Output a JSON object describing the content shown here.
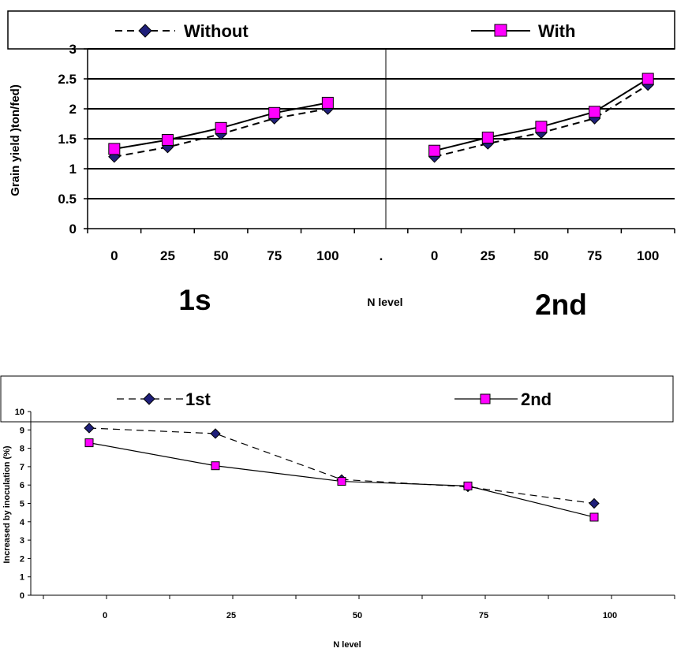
{
  "chart_data": [
    {
      "type": "line",
      "ylabel": "Grain yield )ton/fed)",
      "xlabel": "N level",
      "ylim": [
        0,
        3
      ],
      "yticks": [
        "0",
        "0.5",
        "1",
        "1.5",
        "2",
        "2.5",
        "3"
      ],
      "categories": [
        "0",
        "25",
        "50",
        "75",
        "100",
        ".",
        "0",
        "25",
        "50",
        "75",
        "100"
      ],
      "group_labels": [
        "1s",
        "2nd"
      ],
      "legend": {
        "position": "top"
      },
      "grid": true,
      "series": [
        {
          "name": "Without",
          "color": "#1f1f7a",
          "marker": "diamond",
          "dash": true,
          "values": [
            1.2,
            1.36,
            1.58,
            1.84,
            2.0,
            null,
            1.2,
            1.42,
            1.6,
            1.84,
            2.4
          ]
        },
        {
          "name": "With",
          "color": "#ff00ff",
          "marker": "square",
          "dash": false,
          "values": [
            1.33,
            1.48,
            1.68,
            1.93,
            2.1,
            null,
            1.3,
            1.52,
            1.7,
            1.95,
            2.5
          ]
        }
      ]
    },
    {
      "type": "line",
      "ylabel": "Increased by inoculation (%)",
      "xlabel": "N level",
      "ylim": [
        0,
        10
      ],
      "yticks": [
        "0",
        "1",
        "2",
        "3",
        "4",
        "5",
        "6",
        "7",
        "8",
        "9",
        "10"
      ],
      "categories": [
        "0",
        "25",
        "50",
        "75",
        "100"
      ],
      "legend": {
        "position": "top"
      },
      "grid": false,
      "series": [
        {
          "name": "1st",
          "color": "#1f1f7a",
          "marker": "diamond",
          "dash": true,
          "values": [
            9.1,
            8.8,
            6.3,
            5.9,
            5.0
          ]
        },
        {
          "name": "2nd",
          "color": "#ff00ff",
          "marker": "square",
          "dash": false,
          "values": [
            8.3,
            7.05,
            6.2,
            5.95,
            4.25
          ]
        }
      ]
    }
  ]
}
